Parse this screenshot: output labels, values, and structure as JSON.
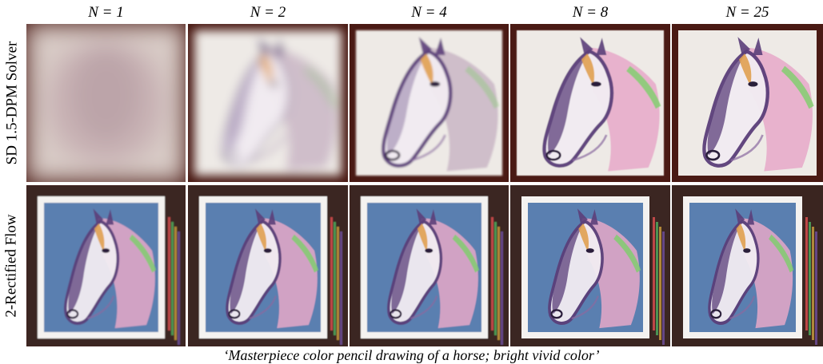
{
  "columns": [
    {
      "label": "N = 1",
      "steps": 1
    },
    {
      "label": "N = 2",
      "steps": 2
    },
    {
      "label": "N = 4",
      "steps": 4
    },
    {
      "label": "N = 8",
      "steps": 8
    },
    {
      "label": "N = 25",
      "steps": 25
    }
  ],
  "rows": [
    {
      "label": "SD 1.5-DPM Solver",
      "style": "dpm"
    },
    {
      "label": "2-Rectified Flow",
      "style": "rectified"
    }
  ],
  "caption": "‘Masterpiece color pencil drawing of a horse; bright vivid color’",
  "colors": {
    "frame_dark": "#4a1a14",
    "paper": "#eeeae6",
    "canvas_blue": "#5a7fb0",
    "horse_purple": "#5b3f7a",
    "horse_pink": "#e6a8c8",
    "horse_orange": "#e0a050",
    "mane_green": "#7ccf6a"
  }
}
